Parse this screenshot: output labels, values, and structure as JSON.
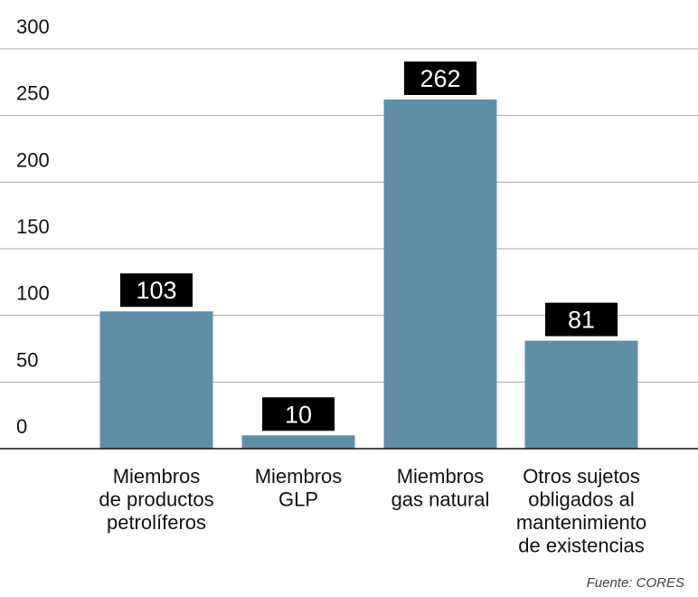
{
  "chart_data": {
    "type": "bar",
    "title": "",
    "xlabel": "",
    "ylabel": "",
    "ylim": [
      0,
      300
    ],
    "yticks": [
      0,
      50,
      100,
      150,
      200,
      250,
      300
    ],
    "grid": true,
    "legend": "none",
    "categories": [
      [
        "Miembros",
        "de productos",
        "petrolíferos"
      ],
      [
        "Miembros",
        "GLP"
      ],
      [
        "Miembros",
        "gas natural"
      ],
      [
        "Otros sujetos",
        "obligados al",
        "mantenimiento",
        "de existencias"
      ]
    ],
    "values": [
      103,
      10,
      262,
      81
    ],
    "value_labels": [
      "103",
      "10",
      "262",
      "81"
    ],
    "bar_color": "#5f8ea8",
    "label_box_color": "#000000"
  },
  "source": "Fuente: CORES"
}
